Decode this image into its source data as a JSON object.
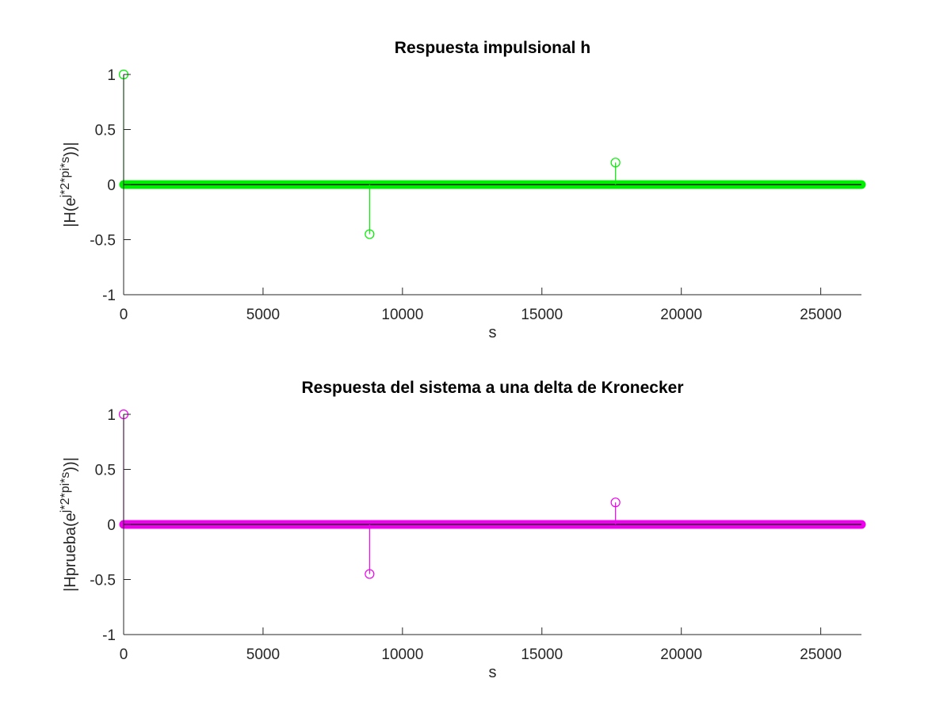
{
  "chart_data": [
    {
      "type": "stem",
      "title": "Respuesta impulsional h",
      "xlabel": "s",
      "ylabel": "|H(e^(j*2*pi*s))|",
      "ylabel_parts": [
        "|H(e",
        "j*2*pi*s",
        "))|"
      ],
      "xlim": [
        0,
        26460
      ],
      "ylim": [
        -1,
        1
      ],
      "xticks": [
        0,
        5000,
        10000,
        15000,
        20000,
        25000
      ],
      "xtick_labels": [
        "0",
        "5000",
        "10000",
        "15000",
        "20000",
        "25000"
      ],
      "yticks": [
        -1,
        -0.5,
        0,
        0.5,
        1
      ],
      "ytick_labels": [
        "-1",
        "-0.5",
        "0",
        "0.5",
        "1"
      ],
      "color": "#00ee00",
      "baseline_value": 0,
      "n_points": 26460,
      "nonzero_points": [
        {
          "x": 0,
          "y": 1
        },
        {
          "x": 8820,
          "y": -0.45
        },
        {
          "x": 17640,
          "y": 0.2
        }
      ],
      "grid": false
    },
    {
      "type": "stem",
      "title": "Respuesta del sistema a una delta de Kronecker",
      "xlabel": "s",
      "ylabel": "|Hprueba(e^(j*2*pi*s))|",
      "ylabel_parts": [
        "|Hprueba(e",
        "j*2*pi*s",
        "))|"
      ],
      "xlim": [
        0,
        26460
      ],
      "ylim": [
        -1,
        1
      ],
      "xticks": [
        0,
        5000,
        10000,
        15000,
        20000,
        25000
      ],
      "xtick_labels": [
        "0",
        "5000",
        "10000",
        "15000",
        "20000",
        "25000"
      ],
      "yticks": [
        -1,
        -0.5,
        0,
        0.5,
        1
      ],
      "ytick_labels": [
        "-1",
        "-0.5",
        "0",
        "0.5",
        "1"
      ],
      "color": "#ee00ee",
      "baseline_value": 0,
      "n_points": 26460,
      "nonzero_points": [
        {
          "x": 0,
          "y": 1
        },
        {
          "x": 8820,
          "y": -0.45
        },
        {
          "x": 17640,
          "y": 0.2
        }
      ],
      "grid": false
    }
  ]
}
